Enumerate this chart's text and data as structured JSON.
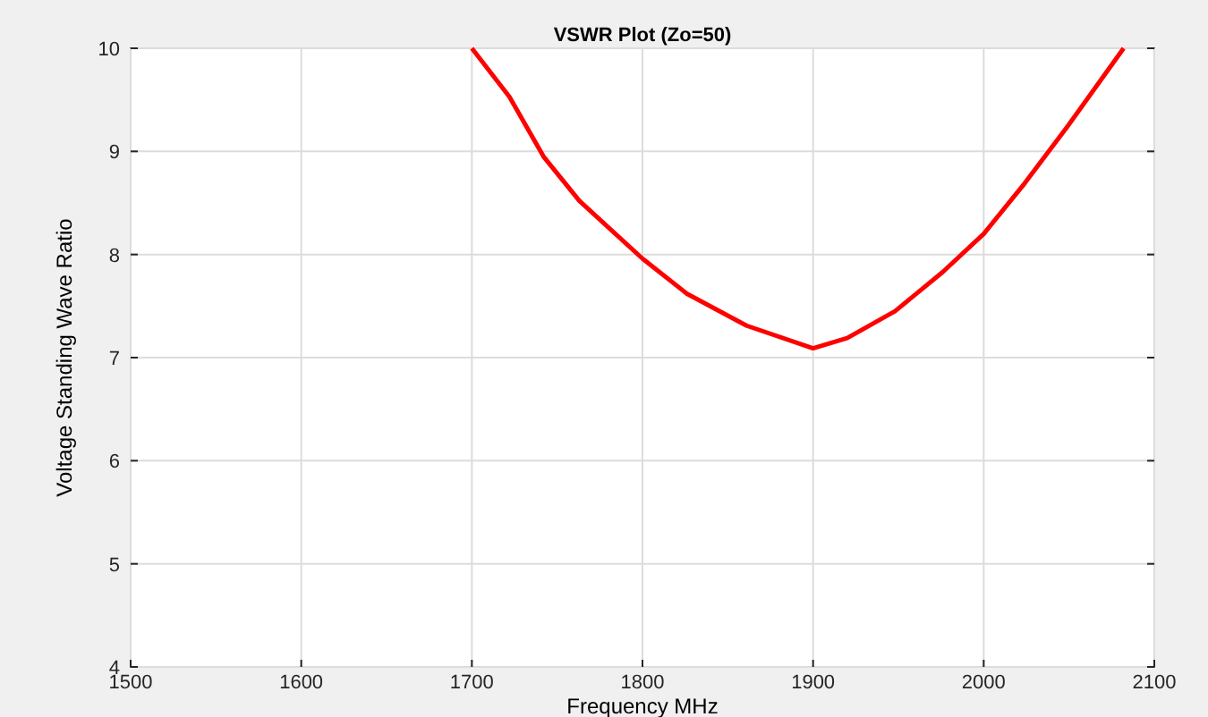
{
  "chart_data": {
    "type": "line",
    "title": "VSWR Plot  (Zo=50)",
    "xlabel": "Frequency MHz",
    "ylabel": "Voltage Standing Wave Ratio",
    "xlim": [
      1500,
      2100
    ],
    "xticks": [
      1500,
      1600,
      1700,
      1800,
      1900,
      2000,
      2100
    ],
    "ylim": [
      4,
      10
    ],
    "yticks": [
      4,
      5,
      6,
      7,
      8,
      9,
      10
    ],
    "grid": true,
    "series": [
      {
        "color": "#ff0000",
        "x": [
          1700,
          1722,
          1742,
          1763,
          1800,
          1826,
          1861,
          1900,
          1920,
          1948,
          1976,
          2000,
          2024,
          2049,
          2082
        ],
        "values": [
          10,
          9.53,
          8.95,
          8.52,
          7.96,
          7.62,
          7.31,
          7.09,
          7.19,
          7.45,
          7.83,
          8.2,
          8.69,
          9.24,
          10
        ]
      }
    ]
  }
}
